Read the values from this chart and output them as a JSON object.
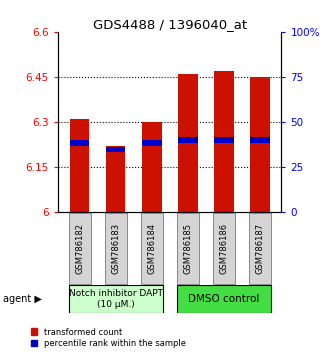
{
  "title": "GDS4488 / 1396040_at",
  "categories": [
    "GSM786182",
    "GSM786183",
    "GSM786184",
    "GSM786185",
    "GSM786186",
    "GSM786187"
  ],
  "bar_values": [
    6.31,
    6.22,
    6.3,
    6.46,
    6.47,
    6.45
  ],
  "blue_values": [
    6.23,
    6.21,
    6.23,
    6.24,
    6.24,
    6.24
  ],
  "bar_color": "#cc1100",
  "blue_color": "#0000cc",
  "ylim_min": 6.0,
  "ylim_max": 6.6,
  "yticks_left": [
    6.0,
    6.15,
    6.3,
    6.45,
    6.6
  ],
  "yticks_right": [
    0,
    25,
    50,
    75,
    100
  ],
  "ytick_labels_left": [
    "6",
    "6.15",
    "6.3",
    "6.45",
    "6.6"
  ],
  "ytick_labels_right": [
    "0",
    "25",
    "50",
    "75",
    "100%"
  ],
  "group1_label": "Notch inhibitor DAPT\n(10 μM.)",
  "group2_label": "DMSO control",
  "group1_color": "#ccffcc",
  "group2_color": "#44dd44",
  "agent_label": "agent",
  "legend1": "transformed count",
  "legend2": "percentile rank within the sample",
  "bar_width": 0.55,
  "grid_lines": [
    6.15,
    6.3,
    6.45
  ]
}
